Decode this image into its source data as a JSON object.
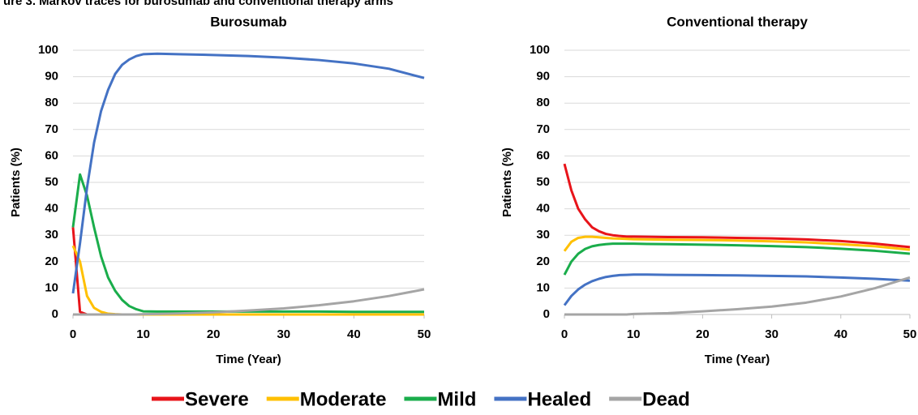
{
  "figure_title": "ure 3. Markov traces for burosumab and conventional therapy arms",
  "chart_data": [
    {
      "type": "line",
      "title": "Burosumab",
      "xlabel": "Time (Year)",
      "ylabel": "Patients (%)",
      "x": [
        0,
        1,
        2,
        3,
        4,
        5,
        6,
        7,
        8,
        9,
        10,
        12,
        15,
        20,
        25,
        30,
        35,
        40,
        45,
        50
      ],
      "xlim": [
        0,
        50
      ],
      "xticks": [
        0,
        10,
        20,
        30,
        40,
        50
      ],
      "ylim": [
        0,
        100
      ],
      "yticks": [
        0,
        10,
        20,
        30,
        40,
        50,
        60,
        70,
        80,
        90,
        100
      ],
      "grid": true,
      "legend": "bottom",
      "series": [
        {
          "name": "Severe",
          "color": "#e8141a",
          "values": [
            33,
            1,
            0,
            0,
            0,
            0,
            0,
            0,
            0,
            0,
            0,
            0,
            0,
            0,
            0,
            0,
            0,
            0,
            0,
            0
          ]
        },
        {
          "name": "Moderate",
          "color": "#ffc000",
          "values": [
            26,
            20,
            7,
            2.5,
            1,
            0.3,
            0.1,
            0,
            0,
            0,
            0,
            0,
            0,
            0,
            0,
            0,
            0,
            0,
            0,
            0
          ]
        },
        {
          "name": "Mild",
          "color": "#1aad4b",
          "values": [
            33,
            53,
            45,
            33,
            22,
            14,
            9,
            5.5,
            3.2,
            2,
            1.2,
            1.1,
            1.1,
            1.1,
            1.1,
            1.1,
            1.1,
            1,
            1,
            1
          ]
        },
        {
          "name": "Healed",
          "color": "#4472c4",
          "values": [
            8,
            27,
            48,
            65,
            77,
            85,
            91,
            94.5,
            96.5,
            97.8,
            98.5,
            98.7,
            98.5,
            98.2,
            97.8,
            97.2,
            96.3,
            95,
            93,
            89.5
          ]
        },
        {
          "name": "Dead",
          "color": "#a5a5a5",
          "values": [
            0,
            0,
            0,
            0,
            0,
            0,
            0,
            0,
            0,
            0,
            0.1,
            0.2,
            0.4,
            0.8,
            1.5,
            2.3,
            3.5,
            5,
            7,
            9.5
          ]
        }
      ]
    },
    {
      "type": "line",
      "title": "Conventional therapy",
      "xlabel": "Time (Year)",
      "ylabel": "Patients (%)",
      "x": [
        0,
        1,
        2,
        3,
        4,
        5,
        6,
        7,
        8,
        9,
        10,
        12,
        15,
        20,
        25,
        30,
        35,
        40,
        45,
        50
      ],
      "xlim": [
        0,
        50
      ],
      "xticks": [
        0,
        10,
        20,
        30,
        40,
        50
      ],
      "ylim": [
        0,
        100
      ],
      "yticks": [
        0,
        10,
        20,
        30,
        40,
        50,
        60,
        70,
        80,
        90,
        100
      ],
      "grid": true,
      "series": [
        {
          "name": "Severe",
          "color": "#e8141a",
          "values": [
            57,
            47,
            40,
            36,
            33,
            31.5,
            30.5,
            30,
            29.7,
            29.5,
            29.5,
            29.4,
            29.3,
            29.2,
            29,
            28.8,
            28.4,
            27.8,
            26.8,
            25.5
          ]
        },
        {
          "name": "Moderate",
          "color": "#ffc000",
          "values": [
            24,
            27.5,
            29,
            29.4,
            29.4,
            29.2,
            29,
            28.8,
            28.7,
            28.6,
            28.5,
            28.4,
            28.3,
            28.2,
            28,
            27.7,
            27.3,
            26.6,
            25.8,
            24.5
          ]
        },
        {
          "name": "Mild",
          "color": "#1aad4b",
          "values": [
            15,
            20,
            23,
            24.8,
            25.8,
            26.3,
            26.6,
            26.8,
            26.8,
            26.8,
            26.8,
            26.7,
            26.6,
            26.4,
            26.2,
            25.9,
            25.5,
            24.9,
            24.1,
            23
          ]
        },
        {
          "name": "Healed",
          "color": "#4472c4",
          "values": [
            3.5,
            7,
            9.5,
            11.3,
            12.6,
            13.5,
            14.2,
            14.6,
            14.9,
            15,
            15.1,
            15.1,
            15,
            14.9,
            14.8,
            14.6,
            14.4,
            14,
            13.5,
            12.8
          ]
        },
        {
          "name": "Dead",
          "color": "#a5a5a5",
          "values": [
            0,
            0,
            0,
            0,
            0,
            0,
            0,
            0,
            0,
            0,
            0.2,
            0.3,
            0.5,
            1.2,
            2,
            3,
            4.5,
            6.8,
            10,
            14
          ]
        }
      ]
    }
  ]
}
